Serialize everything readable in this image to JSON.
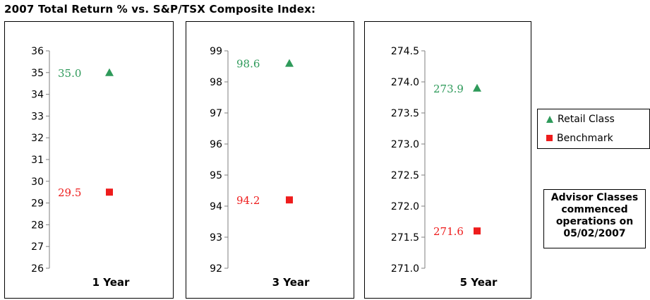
{
  "title": "2007 Total Return % vs. S&P/TSX Composite Index:",
  "colors": {
    "retail": "#2e9a5a",
    "benchmark": "#ee1c1c",
    "axis": "#7f7f7f"
  },
  "legend": {
    "retail_label": "Retail Class",
    "benchmark_label": "Benchmark"
  },
  "note": {
    "line1": "Advisor Classes",
    "line2": "commenced",
    "line3": "operations on",
    "line4": "05/02/2007"
  },
  "chart_data": [
    {
      "type": "scatter",
      "xlabel": "1 Year",
      "ylim": [
        26,
        36
      ],
      "yticks": [
        "26",
        "27",
        "28",
        "29",
        "30",
        "31",
        "32",
        "33",
        "34",
        "35",
        "36"
      ],
      "series": [
        {
          "name": "Retail Class",
          "marker": "triangle",
          "value": 35.0,
          "label": "35.0"
        },
        {
          "name": "Benchmark",
          "marker": "square",
          "value": 29.5,
          "label": "29.5"
        }
      ]
    },
    {
      "type": "scatter",
      "xlabel": "3 Year",
      "ylim": [
        92,
        99
      ],
      "yticks": [
        "92",
        "93",
        "94",
        "95",
        "96",
        "97",
        "98",
        "99"
      ],
      "series": [
        {
          "name": "Retail Class",
          "marker": "triangle",
          "value": 98.6,
          "label": "98.6"
        },
        {
          "name": "Benchmark",
          "marker": "square",
          "value": 94.2,
          "label": "94.2"
        }
      ]
    },
    {
      "type": "scatter",
      "xlabel": "5 Year",
      "ylim": [
        271.0,
        274.5
      ],
      "yticks": [
        "271.0",
        "271.5",
        "272.0",
        "272.5",
        "273.0",
        "273.5",
        "274.0",
        "274.5"
      ],
      "series": [
        {
          "name": "Retail Class",
          "marker": "triangle",
          "value": 273.9,
          "label": "273.9"
        },
        {
          "name": "Benchmark",
          "marker": "square",
          "value": 271.6,
          "label": "271.6"
        }
      ]
    }
  ]
}
